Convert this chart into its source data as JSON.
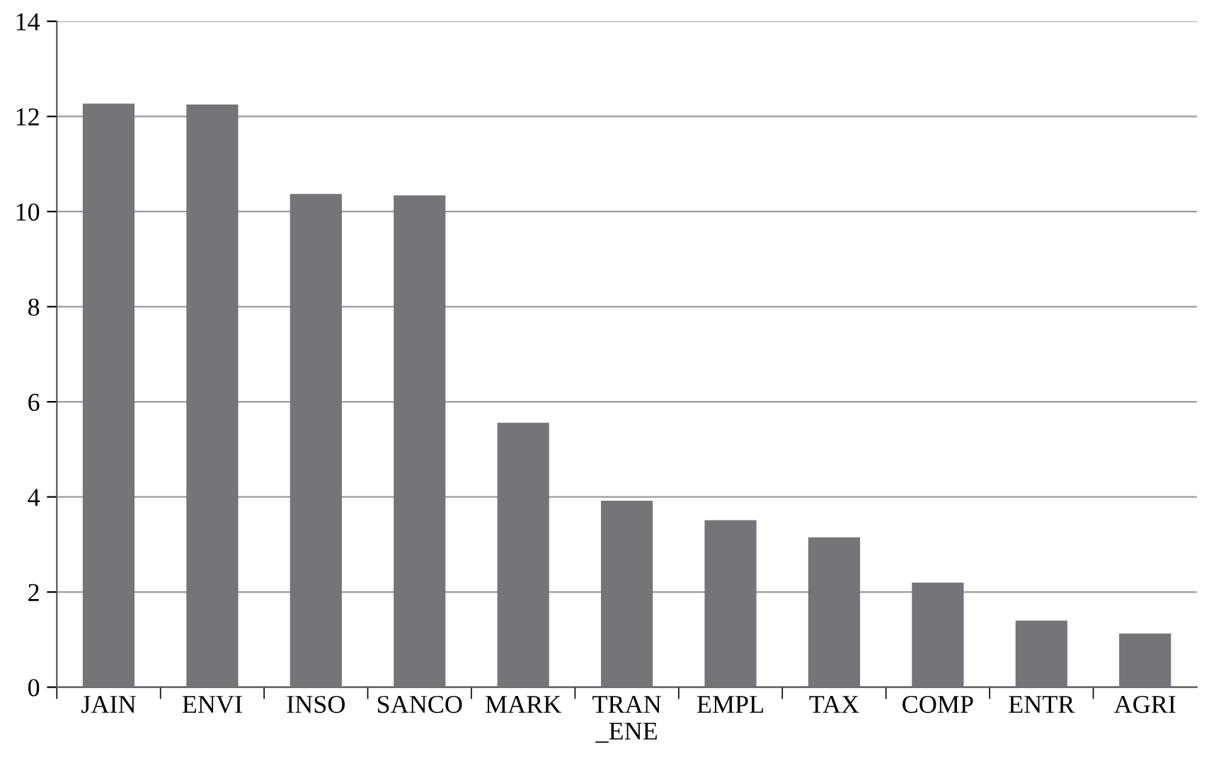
{
  "chart_data": {
    "type": "bar",
    "categories": [
      "JAIN",
      "ENVI",
      "INSO",
      "SANCO",
      "MARK",
      "TRAN\n_ENE",
      "EMPL",
      "TAX",
      "COMP",
      "ENTR",
      "AGRI"
    ],
    "values": [
      12.27,
      12.25,
      10.37,
      10.34,
      5.56,
      3.92,
      3.51,
      3.15,
      2.2,
      1.4,
      1.13
    ],
    "color": "#757579",
    "ylim": [
      0,
      14
    ],
    "yticks": [
      0,
      2,
      4,
      6,
      8,
      10,
      12,
      14
    ],
    "grid": "y"
  }
}
